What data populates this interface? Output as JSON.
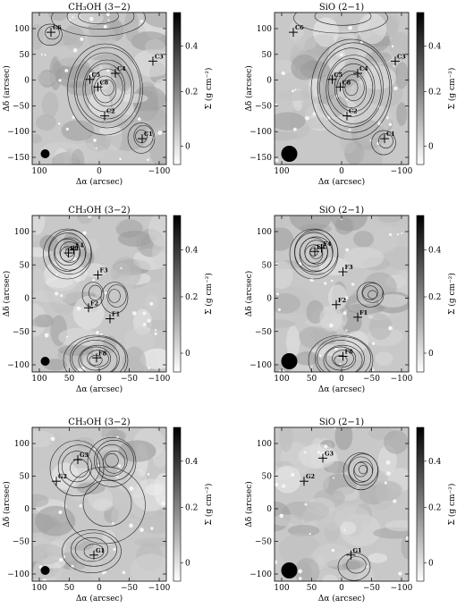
{
  "figure": {
    "panels": [
      {
        "id": "c_ch3oh",
        "title": "CH₃OH (3−2)",
        "xticks": [
          "100",
          "0",
          "−100"
        ],
        "yticks": [
          "100",
          "50",
          "0",
          "−50",
          "−100",
          "−150"
        ],
        "markers": [
          {
            "name": "C6",
            "x": 0.14,
            "y": 0.13
          },
          {
            "name": "C5",
            "x": 0.43,
            "y": 0.44
          },
          {
            "name": "C3",
            "x": 0.9,
            "y": 0.32
          },
          {
            "name": "C4",
            "x": 0.62,
            "y": 0.4
          },
          {
            "name": "C8",
            "x": 0.49,
            "y": 0.49
          },
          {
            "name": "C2",
            "x": 0.54,
            "y": 0.68
          },
          {
            "name": "C1",
            "x": 0.82,
            "y": 0.83
          }
        ],
        "beam": "small",
        "contours": [
          {
            "cx": 0.55,
            "cy": 0.5,
            "rx": 0.28,
            "ry": 0.3,
            "n": 8
          },
          {
            "cx": 0.5,
            "cy": 0.03,
            "rx": 0.35,
            "ry": 0.12,
            "n": 3
          },
          {
            "cx": 0.82,
            "cy": 0.82,
            "rx": 0.1,
            "ry": 0.1,
            "n": 3
          },
          {
            "cx": 0.14,
            "cy": 0.14,
            "rx": 0.09,
            "ry": 0.07,
            "n": 2
          }
        ]
      },
      {
        "id": "c_sio",
        "title": "SiO (2−1)",
        "xticks": [
          "100",
          "0",
          "−100"
        ],
        "yticks": [
          "100",
          "50",
          "0",
          "−50",
          "−100",
          "−150"
        ],
        "markers": [
          {
            "name": "C6",
            "x": 0.14,
            "y": 0.13
          },
          {
            "name": "C5",
            "x": 0.43,
            "y": 0.44
          },
          {
            "name": "C3",
            "x": 0.9,
            "y": 0.32
          },
          {
            "name": "C4",
            "x": 0.62,
            "y": 0.4
          },
          {
            "name": "C8",
            "x": 0.49,
            "y": 0.49
          },
          {
            "name": "C2",
            "x": 0.54,
            "y": 0.68
          },
          {
            "name": "C1",
            "x": 0.82,
            "y": 0.83
          }
        ],
        "beam": "large",
        "contours": [
          {
            "cx": 0.58,
            "cy": 0.5,
            "rx": 0.3,
            "ry": 0.33,
            "n": 9
          },
          {
            "cx": 0.5,
            "cy": 0.03,
            "rx": 0.35,
            "ry": 0.1,
            "n": 2
          },
          {
            "cx": 0.82,
            "cy": 0.85,
            "rx": 0.09,
            "ry": 0.08,
            "n": 2
          }
        ]
      },
      {
        "id": "f_ch3oh",
        "title": "CH₃OH (3−2)",
        "xticks": [
          "100",
          "50",
          "0",
          "−50",
          "−100"
        ],
        "yticks": [
          "100",
          "50",
          "0",
          "−50",
          "−100"
        ],
        "markers": [
          {
            "name": "F9",
            "x": 0.27,
            "y": 0.24
          },
          {
            "name": "F4",
            "x": 0.31,
            "y": 0.22
          },
          {
            "name": "F3",
            "x": 0.49,
            "y": 0.38
          },
          {
            "name": "F2",
            "x": 0.42,
            "y": 0.59
          },
          {
            "name": "F1",
            "x": 0.58,
            "y": 0.66
          },
          {
            "name": "F8",
            "x": 0.48,
            "y": 0.91
          }
        ],
        "beam": "small",
        "contours": [
          {
            "cx": 0.27,
            "cy": 0.24,
            "rx": 0.18,
            "ry": 0.16,
            "n": 8
          },
          {
            "cx": 0.48,
            "cy": 0.92,
            "rx": 0.24,
            "ry": 0.16,
            "n": 7
          },
          {
            "cx": 0.62,
            "cy": 0.52,
            "rx": 0.1,
            "ry": 0.1,
            "n": 3
          },
          {
            "cx": 0.46,
            "cy": 0.5,
            "rx": 0.08,
            "ry": 0.08,
            "n": 2
          }
        ]
      },
      {
        "id": "f_sio",
        "title": "SiO (2−1)",
        "xticks": [
          "100",
          "50",
          "0",
          "−50",
          "−100"
        ],
        "yticks": [
          "100",
          "50",
          "0",
          "−50",
          "−100"
        ],
        "markers": [
          {
            "name": "F9",
            "x": 0.3,
            "y": 0.23
          },
          {
            "name": "F4",
            "x": 0.35,
            "y": 0.21
          },
          {
            "name": "F3",
            "x": 0.51,
            "y": 0.36
          },
          {
            "name": "F2",
            "x": 0.46,
            "y": 0.57
          },
          {
            "name": "F1",
            "x": 0.62,
            "y": 0.65
          },
          {
            "name": "F8",
            "x": 0.51,
            "y": 0.9
          }
        ],
        "beam": "large",
        "contours": [
          {
            "cx": 0.3,
            "cy": 0.24,
            "rx": 0.18,
            "ry": 0.16,
            "n": 9
          },
          {
            "cx": 0.5,
            "cy": 0.92,
            "rx": 0.24,
            "ry": 0.16,
            "n": 7
          },
          {
            "cx": 0.72,
            "cy": 0.5,
            "rx": 0.1,
            "ry": 0.08,
            "n": 4
          }
        ]
      },
      {
        "id": "g_ch3oh",
        "title": "CH₃OH (3−2)",
        "xticks": [
          "100",
          "50",
          "0",
          "−50",
          "−100"
        ],
        "yticks": [
          "100",
          "50",
          "0",
          "−50",
          "−100"
        ],
        "markers": [
          {
            "name": "G3",
            "x": 0.34,
            "y": 0.21
          },
          {
            "name": "G2",
            "x": 0.18,
            "y": 0.35
          },
          {
            "name": "G1",
            "x": 0.46,
            "y": 0.83
          }
        ],
        "beam": "small",
        "contours": [
          {
            "cx": 0.6,
            "cy": 0.22,
            "rx": 0.18,
            "ry": 0.16,
            "n": 5
          },
          {
            "cx": 0.34,
            "cy": 0.26,
            "rx": 0.2,
            "ry": 0.18,
            "n": 4
          },
          {
            "cx": 0.45,
            "cy": 0.8,
            "rx": 0.22,
            "ry": 0.14,
            "n": 4
          },
          {
            "cx": 0.55,
            "cy": 0.5,
            "rx": 0.3,
            "ry": 0.25,
            "n": 2
          }
        ]
      },
      {
        "id": "g_sio",
        "title": "SiO (2−1)",
        "xticks": [
          "100",
          "50",
          "0",
          "−50",
          "−100"
        ],
        "yticks": [
          "100",
          "50",
          "0",
          "−50",
          "−100"
        ],
        "markers": [
          {
            "name": "G3",
            "x": 0.36,
            "y": 0.2
          },
          {
            "name": "G2",
            "x": 0.22,
            "y": 0.35
          },
          {
            "name": "G1",
            "x": 0.57,
            "y": 0.83
          }
        ],
        "beam": "large",
        "contours": [
          {
            "cx": 0.65,
            "cy": 0.28,
            "rx": 0.13,
            "ry": 0.12,
            "n": 6
          },
          {
            "cx": 0.6,
            "cy": 0.9,
            "rx": 0.12,
            "ry": 0.09,
            "n": 2
          }
        ]
      }
    ],
    "xlabel": "Δα (arcsec)",
    "ylabel": "Δδ (arcsec)",
    "cbar_label": "Σ (g cm⁻²)",
    "cbar_ticks": [
      "0.4",
      "0.2",
      "0"
    ]
  }
}
